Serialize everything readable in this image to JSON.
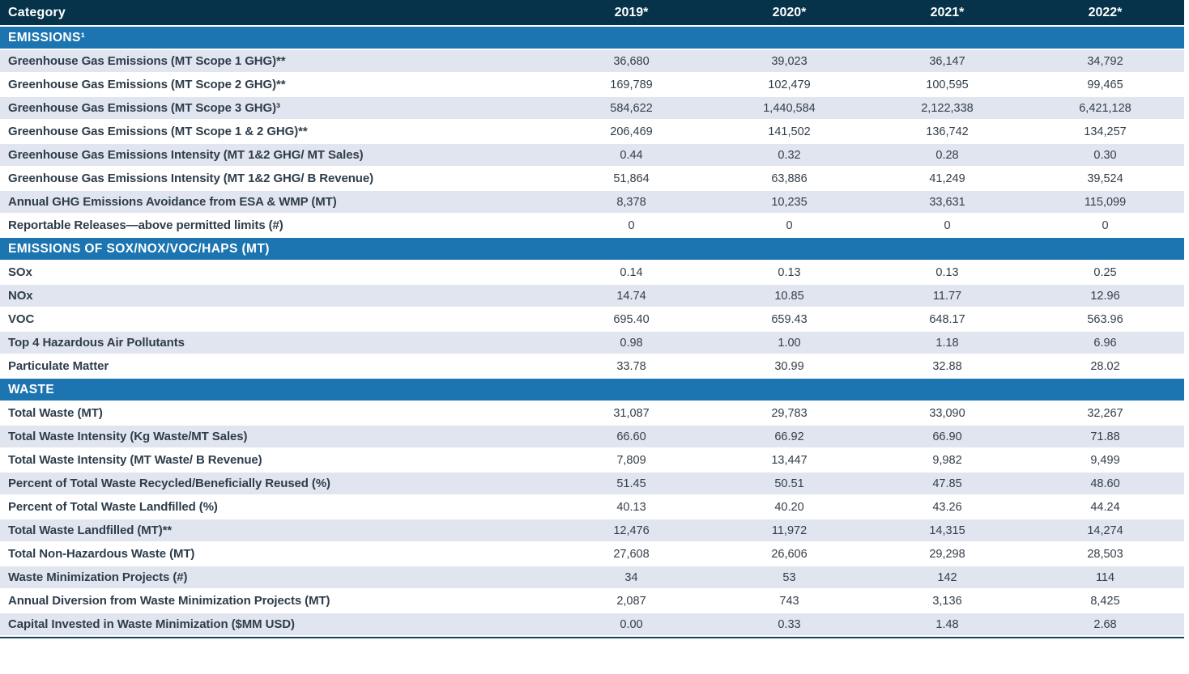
{
  "table": {
    "header": {
      "category_label": "Category",
      "years": [
        "2019*",
        "2020*",
        "2021*",
        "2022*"
      ]
    },
    "sections": [
      {
        "title": "EMISSIONS¹",
        "rows": [
          {
            "label": "Greenhouse Gas Emissions (MT Scope 1 GHG)**",
            "values": [
              "36,680",
              "39,023",
              "36,147",
              "34,792"
            ]
          },
          {
            "label": "Greenhouse Gas Emissions (MT Scope 2 GHG)**",
            "values": [
              "169,789",
              "102,479",
              "100,595",
              "99,465"
            ]
          },
          {
            "label": "Greenhouse Gas Emissions (MT Scope 3 GHG)³",
            "values": [
              "584,622",
              "1,440,584",
              "2,122,338",
              "6,421,128"
            ]
          },
          {
            "label": "Greenhouse Gas Emissions (MT Scope 1 & 2 GHG)**",
            "values": [
              "206,469",
              "141,502",
              "136,742",
              "134,257"
            ]
          },
          {
            "label": "Greenhouse Gas Emissions Intensity (MT 1&2 GHG/ MT Sales)",
            "values": [
              "0.44",
              "0.32",
              "0.28",
              "0.30"
            ]
          },
          {
            "label": "Greenhouse Gas Emissions Intensity (MT 1&2 GHG/ B Revenue)",
            "values": [
              "51,864",
              "63,886",
              "41,249",
              "39,524"
            ]
          },
          {
            "label": "Annual GHG Emissions Avoidance from ESA & WMP (MT)",
            "values": [
              "8,378",
              "10,235",
              "33,631",
              "115,099"
            ]
          },
          {
            "label": "Reportable Releases—above permitted limits (#)",
            "values": [
              "0",
              "0",
              "0",
              "0"
            ]
          }
        ]
      },
      {
        "title": "EMISSIONS OF SOX/NOX/VOC/HAPS (MT)",
        "rows": [
          {
            "label": "SOx",
            "values": [
              "0.14",
              "0.13",
              "0.13",
              "0.25"
            ]
          },
          {
            "label": "NOx",
            "values": [
              "14.74",
              "10.85",
              "11.77",
              "12.96"
            ]
          },
          {
            "label": "VOC",
            "values": [
              "695.40",
              "659.43",
              "648.17",
              "563.96"
            ]
          },
          {
            "label": "Top 4 Hazardous Air Pollutants",
            "values": [
              "0.98",
              "1.00",
              "1.18",
              "6.96"
            ]
          },
          {
            "label": "Particulate Matter",
            "values": [
              "33.78",
              "30.99",
              "32.88",
              "28.02"
            ]
          }
        ]
      },
      {
        "title": "WASTE",
        "rows": [
          {
            "label": "Total Waste (MT)",
            "values": [
              "31,087",
              "29,783",
              "33,090",
              "32,267"
            ]
          },
          {
            "label": "Total Waste Intensity (Kg Waste/MT Sales)",
            "values": [
              "66.60",
              "66.92",
              "66.90",
              "71.88"
            ]
          },
          {
            "label": "Total Waste Intensity (MT Waste/ B Revenue)",
            "values": [
              "7,809",
              "13,447",
              "9,982",
              "9,499"
            ]
          },
          {
            "label": "Percent of Total Waste Recycled/Beneficially Reused (%)",
            "values": [
              "51.45",
              "50.51",
              "47.85",
              "48.60"
            ]
          },
          {
            "label": "Percent of Total Waste Landfilled (%)",
            "values": [
              "40.13",
              "40.20",
              "43.26",
              "44.24"
            ]
          },
          {
            "label": "Total Waste Landfilled (MT)**",
            "values": [
              "12,476",
              "11,972",
              "14,315",
              "14,274"
            ]
          },
          {
            "label": "Total Non-Hazardous Waste (MT)",
            "values": [
              "27,608",
              "26,606",
              "29,298",
              "28,503"
            ]
          },
          {
            "label": "Waste Minimization Projects (#)",
            "values": [
              "34",
              "53",
              "142",
              "114"
            ]
          },
          {
            "label": "Annual Diversion from Waste Minimization Projects (MT)",
            "values": [
              "2,087",
              "743",
              "3,136",
              "8,425"
            ]
          },
          {
            "label": "Capital Invested in Waste Minimization ($MM USD)",
            "values": [
              "0.00",
              "0.33",
              "1.48",
              "2.68"
            ]
          }
        ]
      }
    ],
    "colors": {
      "header_bg": "#063349",
      "section_bg": "#1c75b0",
      "row_alt_bg": "#e1e5ef",
      "border_bottom": "#15445f",
      "label_color": "#2e3d4b",
      "value_color": "#333e4a"
    }
  }
}
